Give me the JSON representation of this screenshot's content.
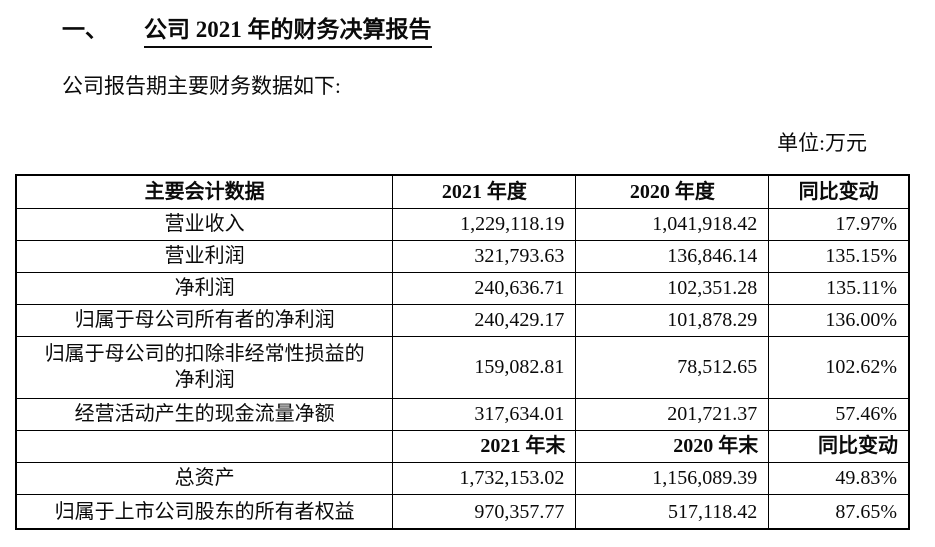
{
  "title": {
    "index": "一、",
    "text": "公司 2021 年的财务决算报告"
  },
  "intro": "公司报告期主要财务数据如下:",
  "unit_label": "单位:万元",
  "table": {
    "header_annual": {
      "label": "主要会计数据",
      "y2021": "2021 年度",
      "y2020": "2020 年度",
      "change": "同比变动"
    },
    "rows_annual": [
      {
        "label": "营业收入",
        "y2021": "1,229,118.19",
        "y2020": "1,041,918.42",
        "change": "17.97%"
      },
      {
        "label": "营业利润",
        "y2021": "321,793.63",
        "y2020": "136,846.14",
        "change": "135.15%"
      },
      {
        "label": "净利润",
        "y2021": "240,636.71",
        "y2020": "102,351.28",
        "change": "135.11%"
      },
      {
        "label": "归属于母公司所有者的净利润",
        "y2021": "240,429.17",
        "y2020": "101,878.29",
        "change": "136.00%"
      },
      {
        "label": "归属于母公司的扣除非经常性损益的净利润",
        "y2021": "159,082.81",
        "y2020": "78,512.65",
        "change": "102.62%"
      },
      {
        "label": "经营活动产生的现金流量净额",
        "y2021": "317,634.01",
        "y2020": "201,721.37",
        "change": "57.46%"
      }
    ],
    "header_period_end": {
      "label": "",
      "y2021": "2021 年末",
      "y2020": "2020 年末",
      "change": "同比变动"
    },
    "rows_period_end": [
      {
        "label": "总资产",
        "y2021": "1,732,153.02",
        "y2020": "1,156,089.39",
        "change": "49.83%"
      },
      {
        "label": "归属于上市公司股东的所有者权益",
        "y2021": "970,357.77",
        "y2020": "517,118.42",
        "change": "87.65%"
      }
    ]
  }
}
